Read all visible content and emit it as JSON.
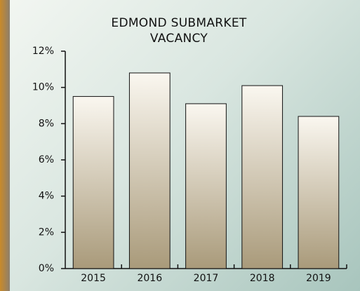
{
  "chart_data": {
    "type": "bar",
    "title": "EDMOND SUBMARKET VACANCY",
    "categories": [
      "2015",
      "2016",
      "2017",
      "2018",
      "2019"
    ],
    "values": [
      9.5,
      10.8,
      9.1,
      10.1,
      8.4
    ],
    "color": "#a99a7a",
    "ylim": [
      0,
      12
    ],
    "yticks": [
      {
        "value": 0,
        "label": "0%"
      },
      {
        "value": 2,
        "label": "2%"
      },
      {
        "value": 4,
        "label": "4%"
      },
      {
        "value": 6,
        "label": "6%"
      },
      {
        "value": 8,
        "label": "8%"
      },
      {
        "value": 10,
        "label": "10%"
      },
      {
        "value": 12,
        "label": "12%"
      }
    ]
  }
}
